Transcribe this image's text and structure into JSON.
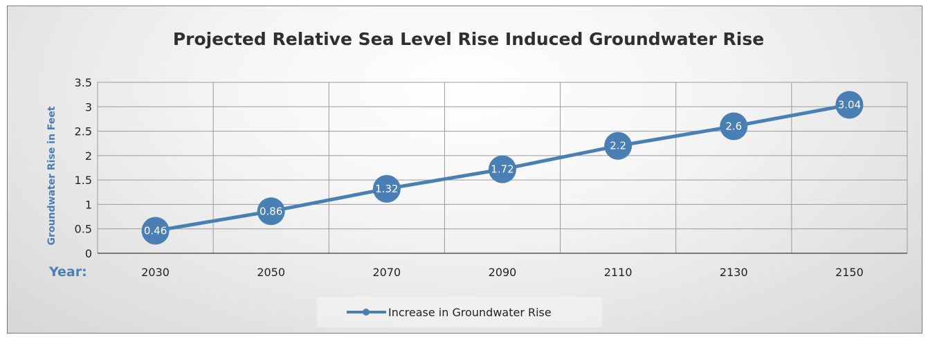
{
  "chart_data": {
    "type": "line",
    "title": "Projected Relative Sea Level Rise Induced Groundwater Rise",
    "ylabel": "Groundwater Rise in Feet",
    "xlabel_prefix": "Year:",
    "x": [
      "2030",
      "2050",
      "2070",
      "2090",
      "2110",
      "2130",
      "2150"
    ],
    "yticks": [
      "0",
      "0.5",
      "1",
      "1.5",
      "2",
      "2.5",
      "3",
      "3.5"
    ],
    "ylim": [
      0,
      3.5
    ],
    "grid": true,
    "legend_position": "bottom",
    "series": [
      {
        "name": "Increase in Groundwater Rise",
        "values": [
          0.46,
          0.86,
          1.32,
          1.72,
          2.2,
          2.6,
          3.04
        ],
        "data_labels": [
          "0.46",
          "0.86",
          "1.32",
          "1.72",
          "2.2",
          "2.6",
          "3.04"
        ],
        "color": "#4a7fb5"
      }
    ]
  }
}
